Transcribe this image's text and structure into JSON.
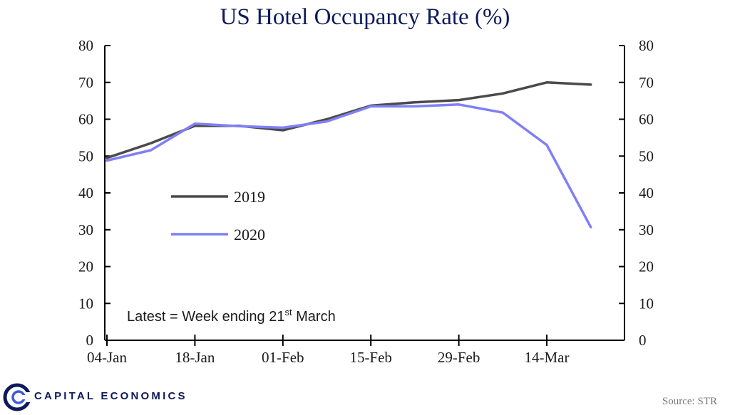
{
  "chart_data": {
    "type": "line",
    "title": "US Hotel Occupancy Rate (%)",
    "xlabel": "",
    "ylabel": "",
    "ylim": [
      0,
      80
    ],
    "yticks": [
      0,
      10,
      20,
      30,
      40,
      50,
      60,
      70,
      80
    ],
    "y2ticks": [
      0,
      10,
      20,
      30,
      40,
      50,
      60,
      70,
      80
    ],
    "categories": [
      "04-Jan",
      "11-Jan",
      "18-Jan",
      "25-Jan",
      "01-Feb",
      "08-Feb",
      "15-Feb",
      "22-Feb",
      "29-Feb",
      "07-Mar",
      "14-Mar",
      "21-Mar"
    ],
    "xticklabels": [
      "04-Jan",
      "18-Jan",
      "01-Feb",
      "15-Feb",
      "29-Feb",
      "14-Mar"
    ],
    "series": [
      {
        "name": "2019",
        "color": "#4a4a4a",
        "values": [
          49.5,
          53.5,
          58.2,
          58.2,
          57.0,
          60.0,
          63.7,
          64.6,
          65.2,
          67.0,
          70.0,
          69.4
        ]
      },
      {
        "name": "2020",
        "color": "#7f80f5",
        "values": [
          48.8,
          51.6,
          58.8,
          58.1,
          57.7,
          59.4,
          63.5,
          63.5,
          64.0,
          61.8,
          53.0,
          30.7
        ]
      }
    ],
    "annotation": {
      "text": "Latest = Week ending  21",
      "superscript": "st",
      "suffix": "  March"
    },
    "legend_position": "left-middle"
  },
  "footer": {
    "brand": "CAPITAL ECONOMICS",
    "source": "Source: STR",
    "brand_color": "#0e1a5a"
  }
}
